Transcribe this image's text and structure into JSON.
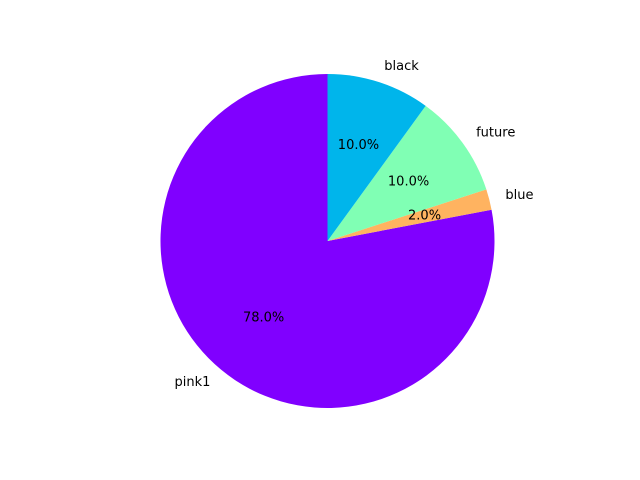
{
  "chart_data": {
    "type": "pie",
    "title": "",
    "start_angle_deg": 90,
    "direction": "clockwise",
    "slices": [
      {
        "label": "pink1",
        "value": 78.0,
        "pct_label": "78.0%",
        "color": "#8000ff"
      },
      {
        "label": "blue",
        "value": 2.0,
        "pct_label": "2.0%",
        "color": "#ffb360"
      },
      {
        "label": "future",
        "value": 10.0,
        "pct_label": "10.0%",
        "color": "#80ffb4"
      },
      {
        "label": "black",
        "value": 10.0,
        "pct_label": "10.0%",
        "color": "#00b5eb"
      }
    ]
  }
}
